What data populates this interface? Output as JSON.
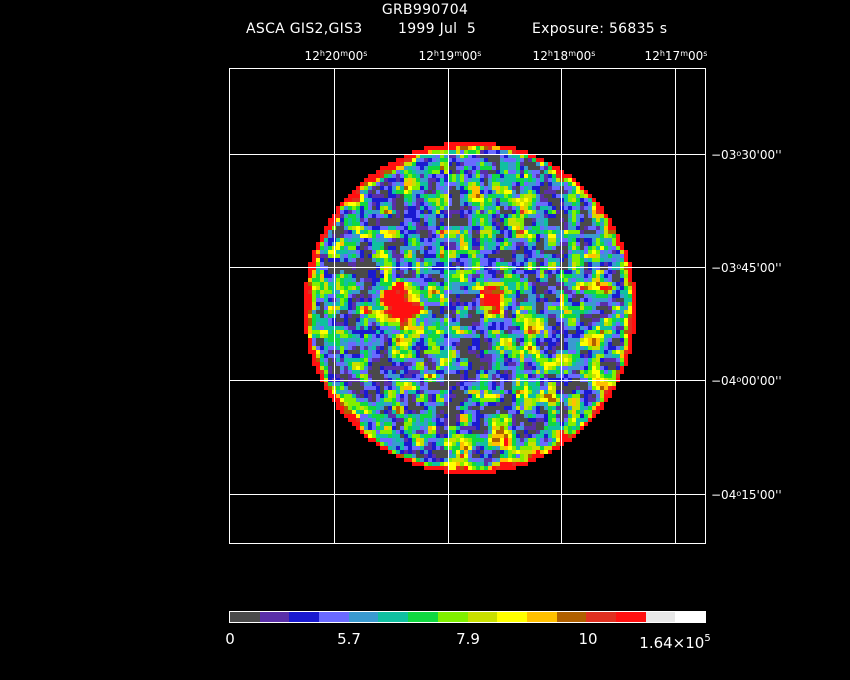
{
  "header": {
    "title": "GRB990704",
    "instrument": "ASCA GIS2,GIS3",
    "date": "1999 Jul  5",
    "exposure": "Exposure: 56835 s"
  },
  "axes": {
    "ra_labels": [
      {
        "h": "12",
        "m": "20",
        "s": "00"
      },
      {
        "h": "12",
        "m": "19",
        "s": "00"
      },
      {
        "h": "12",
        "m": "18",
        "s": "00"
      },
      {
        "h": "12",
        "m": "17",
        "s": "00"
      }
    ],
    "dec_labels": [
      {
        "d": "−03",
        "m": "30",
        "s": "00"
      },
      {
        "d": "−03",
        "m": "45",
        "s": "00"
      },
      {
        "d": "−04",
        "m": "00",
        "s": "00"
      },
      {
        "d": "−04",
        "m": "15",
        "s": "00"
      }
    ]
  },
  "colorbar": {
    "colors": [
      "#4a4a4a",
      "#5a2fa8",
      "#1a1ad0",
      "#6a6aff",
      "#3a9ad0",
      "#10c0a0",
      "#10d840",
      "#80f000",
      "#c8e000",
      "#ffff00",
      "#ffc000",
      "#b06000",
      "#e03020",
      "#ff1010",
      "#e8e8e8",
      "#ffffff"
    ],
    "labels": [
      "0",
      "5.7",
      "7.9",
      "10"
    ],
    "max_label": "1.64×10",
    "max_exp": "5"
  },
  "image": {
    "palette": [
      "#4a4a4a",
      "#5a2fa8",
      "#1a1ad0",
      "#6a6aff",
      "#3a9ad0",
      "#10c0a0",
      "#10d840",
      "#80f000",
      "#c8e000",
      "#ffff00",
      "#ffc000",
      "#b06000",
      "#e03020",
      "#ff1010"
    ]
  }
}
